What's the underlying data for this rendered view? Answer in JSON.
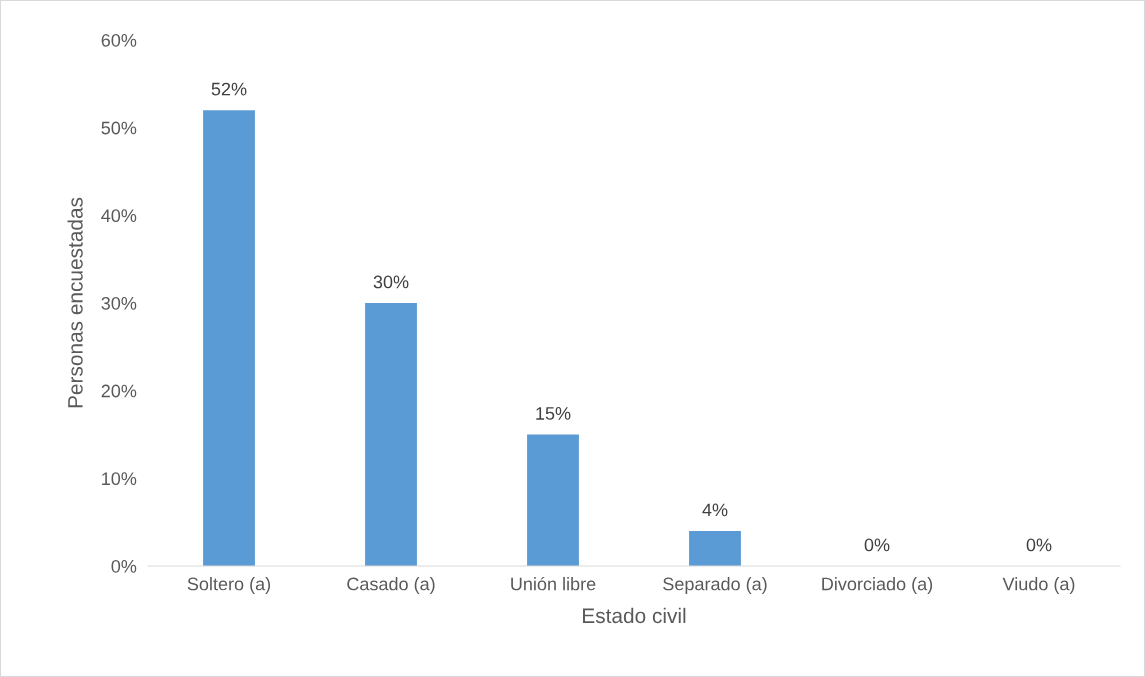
{
  "chart_data": {
    "type": "bar",
    "xlabel": "Estado civil",
    "ylabel": "Personas encuestadas",
    "categories": [
      "Soltero (a)",
      "Casado (a)",
      "Unión libre",
      "Separado (a)",
      "Divorciado (a)",
      "Viudo (a)"
    ],
    "values": [
      52,
      30,
      15,
      4,
      0,
      0
    ],
    "color": "#5b9bd5",
    "value_labels": [
      "52%",
      "30%",
      "15%",
      "4%",
      "0%",
      "0%"
    ],
    "ylim": [
      0,
      60
    ],
    "yticks": [
      {
        "value": 0,
        "label": "0%"
      },
      {
        "value": 10,
        "label": "10%"
      },
      {
        "value": 20,
        "label": "20%"
      },
      {
        "value": 30,
        "label": "30%"
      },
      {
        "value": 40,
        "label": "40%"
      },
      {
        "value": 50,
        "label": "50%"
      },
      {
        "value": 60,
        "label": "60%"
      }
    ],
    "grid": false
  }
}
